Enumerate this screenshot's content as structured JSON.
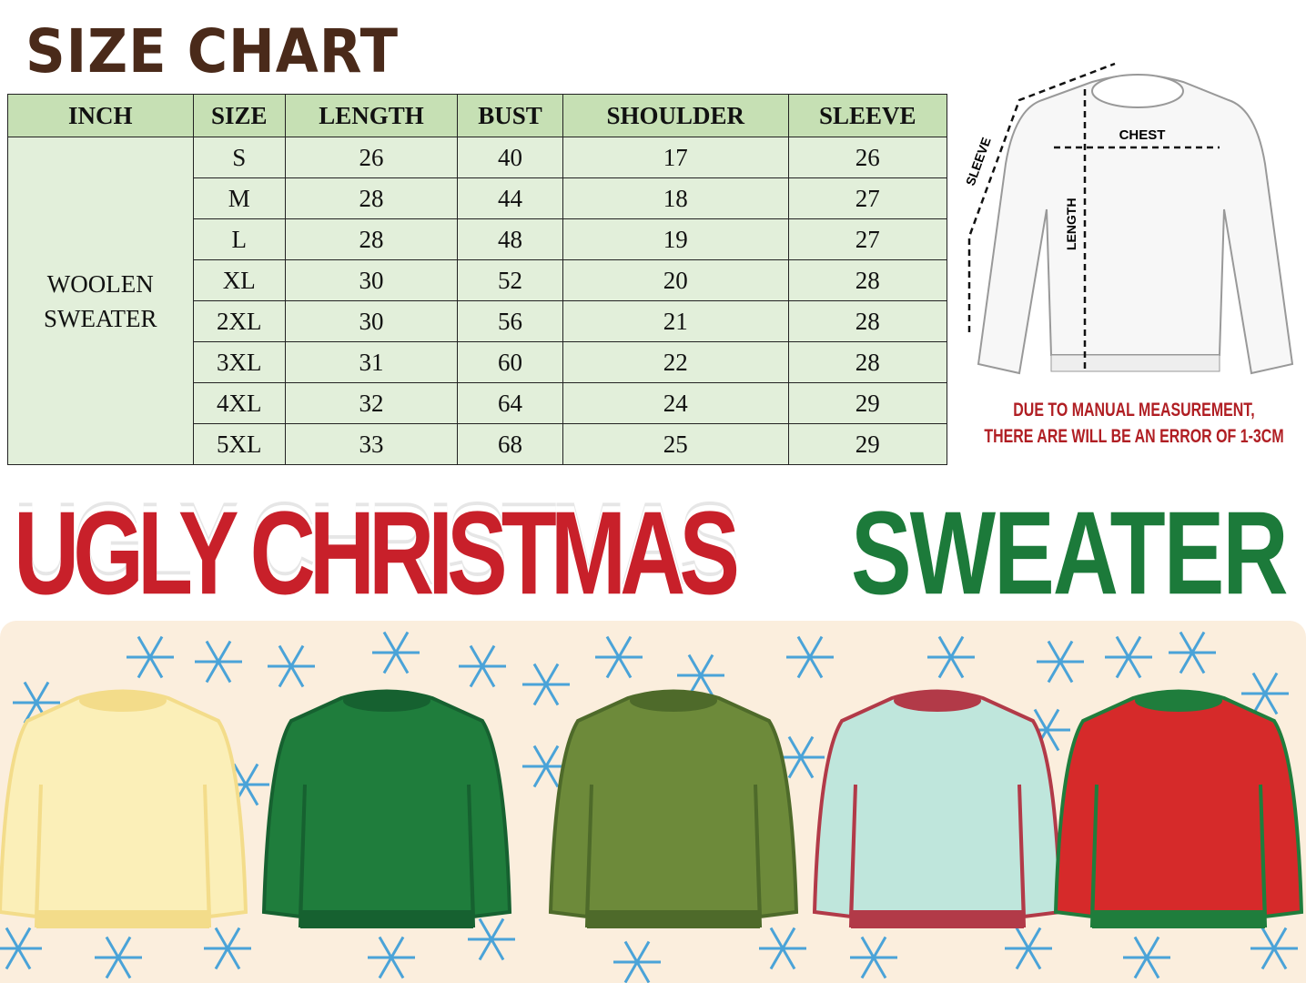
{
  "title": "SIZE CHART",
  "table": {
    "headers": [
      "INCH",
      "SIZE",
      "LENGTH",
      "BUST",
      "SHOULDER",
      "SLEEVE"
    ],
    "category_line1": "WOOLEN",
    "category_line2": "SWEATER",
    "rows": [
      [
        "S",
        "26",
        "40",
        "17",
        "26"
      ],
      [
        "M",
        "28",
        "44",
        "18",
        "27"
      ],
      [
        "L",
        "28",
        "48",
        "19",
        "27"
      ],
      [
        "XL",
        "30",
        "52",
        "20",
        "28"
      ],
      [
        "2XL",
        "30",
        "56",
        "21",
        "28"
      ],
      [
        "3XL",
        "31",
        "60",
        "22",
        "28"
      ],
      [
        "4XL",
        "32",
        "64",
        "24",
        "29"
      ],
      [
        "5XL",
        "33",
        "68",
        "25",
        "29"
      ]
    ]
  },
  "diagram": {
    "chest": "CHEST",
    "length": "LENGTH",
    "sleeve": "SLEEVE"
  },
  "note": {
    "line1": "DUE TO MANUAL MEASUREMENT,",
    "line2": "THERE ARE WILL BE AN ERROR OF 1-3CM"
  },
  "banner": {
    "part1": "UGLY CHRISTMAS",
    "part2": "SWEATER"
  },
  "colors": {
    "header_bg": "#c6e0b4",
    "cell_bg": "#e2efda",
    "title": "#4a2a1a",
    "note": "#b01e23",
    "banner_red": "#c8202a",
    "banner_green": "#1c7a3a",
    "snowflake": "#4aa3d8"
  },
  "sweaters": [
    {
      "name": "christmas-tree-sweater",
      "body": "#fbefb8",
      "trim": "#f3dc8a"
    },
    {
      "name": "polar-bear-sweater",
      "body": "#1f7d3c",
      "trim": "#166130"
    },
    {
      "name": "reindeer-sweater",
      "body": "#6d8a3a",
      "trim": "#4e6a2a"
    },
    {
      "name": "nordic-sweater",
      "body": "#bfe6dc",
      "trim": "#b23a48"
    },
    {
      "name": "elf-sweater",
      "body": "#d62a2a",
      "trim": "#1f7d3c"
    }
  ]
}
